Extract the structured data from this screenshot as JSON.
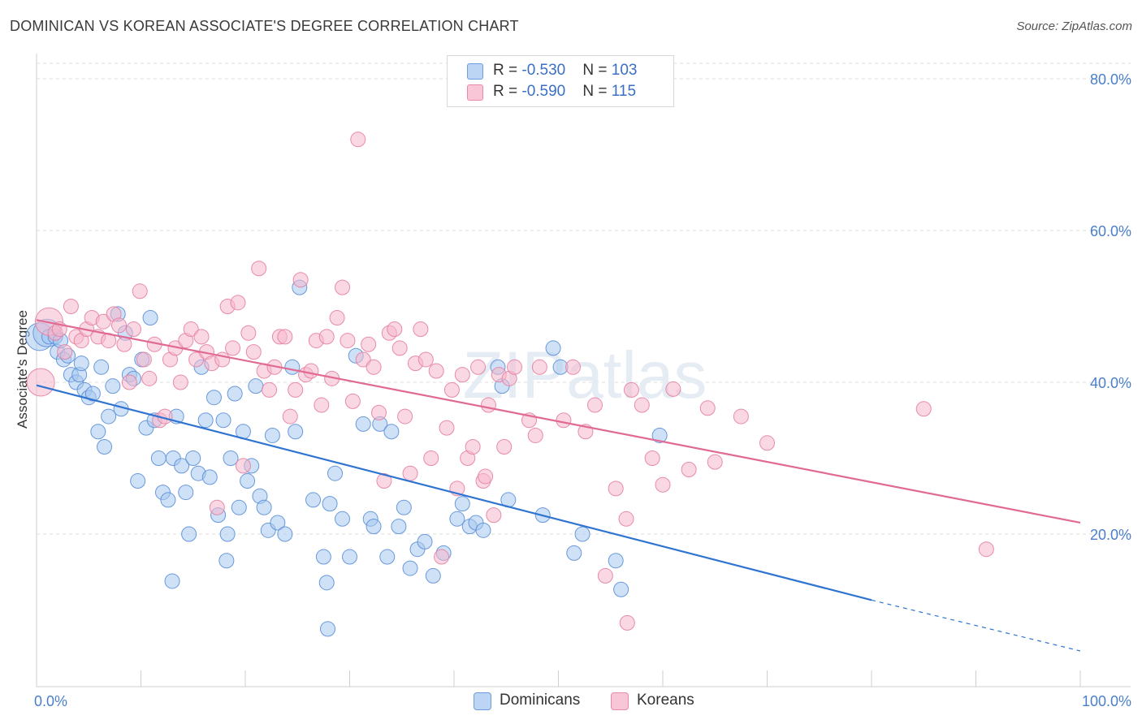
{
  "title": "DOMINICAN VS KOREAN ASSOCIATE'S DEGREE CORRELATION CHART",
  "source": "Source: ZipAtlas.com",
  "watermark": "ZIPatlas",
  "legend_top": {
    "rows": [
      {
        "r_label": "R = ",
        "r_value": "-0.530",
        "n_label": "N = ",
        "n_value": "103"
      },
      {
        "r_label": "R = ",
        "r_value": "-0.590",
        "n_label": "N = ",
        "n_value": "115"
      }
    ]
  },
  "legend_bottom": {
    "series_a": "Dominicans",
    "series_b": "Koreans"
  },
  "colors": {
    "dominican_fill": "#a8c8f0",
    "dominican_stroke": "#5b8fd6",
    "dominican_line": "#2f74d0",
    "korean_fill": "#f6b8cc",
    "korean_stroke": "#e57fa2",
    "korean_line": "#e06a94",
    "tick_text": "#4a7fc9",
    "grid": "#dedede"
  },
  "chart_data": {
    "type": "scatter",
    "title": "DOMINICAN VS KOREAN ASSOCIATE'S DEGREE CORRELATION CHART",
    "xlabel": "",
    "ylabel": "Associate's Degree",
    "xlim": [
      0,
      100
    ],
    "ylim": [
      0,
      82
    ],
    "x_tick_labels": [
      "0.0%",
      "100.0%"
    ],
    "y_ticks": [
      20,
      40,
      60,
      80
    ],
    "y_tick_labels": [
      "20.0%",
      "40.0%",
      "60.0%",
      "80.0%"
    ],
    "grid": true,
    "series": [
      {
        "name": "Dominicans",
        "r": -0.53,
        "n": 103,
        "trend": {
          "x0": 0,
          "y0": 39.6,
          "x1": 80,
          "y1": 11.3,
          "dashed_to_x": 100,
          "dashed_to_y": 4.6
        },
        "points": [
          [
            0.3,
            46
          ],
          [
            1,
            46.5
          ],
          [
            1.2,
            46
          ],
          [
            1.8,
            46
          ],
          [
            2,
            44
          ],
          [
            2.3,
            45.5
          ],
          [
            2.6,
            43
          ],
          [
            3,
            43.5
          ],
          [
            3.3,
            41
          ],
          [
            3.8,
            40
          ],
          [
            4.1,
            41
          ],
          [
            4.3,
            42.5
          ],
          [
            4.6,
            39
          ],
          [
            5,
            38
          ],
          [
            5.4,
            38.5
          ],
          [
            5.9,
            33.5
          ],
          [
            6.2,
            42
          ],
          [
            6.5,
            31.5
          ],
          [
            6.9,
            35.5
          ],
          [
            7.3,
            39.5
          ],
          [
            7.8,
            49
          ],
          [
            8.1,
            36.5
          ],
          [
            8.5,
            46.5
          ],
          [
            8.9,
            41
          ],
          [
            9.3,
            40.5
          ],
          [
            9.7,
            27
          ],
          [
            10.1,
            43
          ],
          [
            10.5,
            34
          ],
          [
            10.9,
            48.5
          ],
          [
            11.3,
            35
          ],
          [
            11.7,
            30
          ],
          [
            12.1,
            25.5
          ],
          [
            12.6,
            24.5
          ],
          [
            13.1,
            30
          ],
          [
            13.4,
            35.5
          ],
          [
            13.9,
            29
          ],
          [
            14.3,
            25.5
          ],
          [
            14.6,
            20
          ],
          [
            15,
            30
          ],
          [
            15.5,
            28
          ],
          [
            15.8,
            42
          ],
          [
            16.2,
            35
          ],
          [
            16.6,
            27.5
          ],
          [
            17,
            38
          ],
          [
            17.4,
            22.5
          ],
          [
            17.9,
            35
          ],
          [
            18.3,
            20
          ],
          [
            18.6,
            30
          ],
          [
            19,
            38.5
          ],
          [
            19.4,
            23.5
          ],
          [
            19.8,
            33.5
          ],
          [
            20.2,
            27
          ],
          [
            20.6,
            29
          ],
          [
            21,
            39.5
          ],
          [
            21.4,
            25
          ],
          [
            21.8,
            23.5
          ],
          [
            22.2,
            20.5
          ],
          [
            22.6,
            33
          ],
          [
            23.1,
            21.5
          ],
          [
            23.8,
            20
          ],
          [
            24.5,
            42
          ],
          [
            24.8,
            33.5
          ],
          [
            25.2,
            52.5
          ],
          [
            26.5,
            24.5
          ],
          [
            27.5,
            17
          ],
          [
            27.9,
            7.5
          ],
          [
            28.1,
            24
          ],
          [
            28.6,
            28
          ],
          [
            29.3,
            22
          ],
          [
            30,
            17
          ],
          [
            30.6,
            43.5
          ],
          [
            31.3,
            34.5
          ],
          [
            32,
            22
          ],
          [
            32.3,
            21
          ],
          [
            32.9,
            34.5
          ],
          [
            33.6,
            17
          ],
          [
            34,
            33.5
          ],
          [
            34.7,
            21
          ],
          [
            35.2,
            23.5
          ],
          [
            35.8,
            15.5
          ],
          [
            36.5,
            18
          ],
          [
            37.2,
            19
          ],
          [
            38,
            14.5
          ],
          [
            39,
            17.5
          ],
          [
            40.3,
            22
          ],
          [
            40.8,
            24
          ],
          [
            41.5,
            21
          ],
          [
            42.1,
            21.5
          ],
          [
            42.8,
            20.5
          ],
          [
            44.2,
            42
          ],
          [
            44.6,
            39.5
          ],
          [
            45.2,
            24.5
          ],
          [
            48.5,
            22.5
          ],
          [
            49.5,
            44.5
          ],
          [
            50.2,
            42
          ],
          [
            51.5,
            17.5
          ],
          [
            52.3,
            20
          ],
          [
            55.5,
            16.5
          ],
          [
            59.7,
            33
          ],
          [
            13,
            13.8
          ],
          [
            18.2,
            16.5
          ],
          [
            56,
            12.7
          ],
          [
            27.8,
            13.6
          ]
        ]
      },
      {
        "name": "Koreans",
        "r": -0.59,
        "n": 115,
        "trend": {
          "x0": 0,
          "y0": 48.2,
          "x1": 100,
          "y1": 21.5
        },
        "points": [
          [
            0.4,
            40
          ],
          [
            1.2,
            48
          ],
          [
            1.8,
            46.5
          ],
          [
            2.2,
            47
          ],
          [
            2.7,
            44
          ],
          [
            3.3,
            50
          ],
          [
            3.8,
            46
          ],
          [
            4.3,
            45.5
          ],
          [
            4.8,
            47
          ],
          [
            5.3,
            48.5
          ],
          [
            5.9,
            46
          ],
          [
            6.4,
            48
          ],
          [
            6.9,
            45.5
          ],
          [
            7.4,
            49
          ],
          [
            7.9,
            47.5
          ],
          [
            8.4,
            45
          ],
          [
            8.9,
            40
          ],
          [
            9.3,
            47
          ],
          [
            9.9,
            52
          ],
          [
            10.3,
            43
          ],
          [
            10.8,
            40.5
          ],
          [
            11.3,
            45
          ],
          [
            11.8,
            35
          ],
          [
            12.3,
            35.5
          ],
          [
            12.8,
            43
          ],
          [
            13.3,
            44.5
          ],
          [
            13.8,
            40
          ],
          [
            14.3,
            45.5
          ],
          [
            14.8,
            47
          ],
          [
            15.3,
            43
          ],
          [
            15.8,
            46
          ],
          [
            16.3,
            44
          ],
          [
            16.8,
            42.5
          ],
          [
            17.3,
            23.5
          ],
          [
            17.8,
            43
          ],
          [
            18.3,
            50
          ],
          [
            18.8,
            44.5
          ],
          [
            19.3,
            50.5
          ],
          [
            19.8,
            29
          ],
          [
            20.3,
            46.5
          ],
          [
            20.8,
            44
          ],
          [
            21.3,
            55
          ],
          [
            21.8,
            41.5
          ],
          [
            22.3,
            39
          ],
          [
            22.8,
            42
          ],
          [
            23.3,
            46
          ],
          [
            23.8,
            46
          ],
          [
            24.3,
            35.5
          ],
          [
            24.8,
            39
          ],
          [
            25.3,
            53.5
          ],
          [
            25.8,
            41
          ],
          [
            26.3,
            41.5
          ],
          [
            26.8,
            45.5
          ],
          [
            27.3,
            37
          ],
          [
            27.8,
            46
          ],
          [
            28.3,
            40.5
          ],
          [
            28.8,
            48.5
          ],
          [
            29.3,
            52.5
          ],
          [
            29.8,
            45.5
          ],
          [
            30.3,
            37.5
          ],
          [
            30.8,
            72
          ],
          [
            31.3,
            43
          ],
          [
            31.8,
            45
          ],
          [
            32.3,
            42
          ],
          [
            32.8,
            36
          ],
          [
            33.3,
            27
          ],
          [
            33.8,
            46.5
          ],
          [
            34.3,
            47
          ],
          [
            34.8,
            44.5
          ],
          [
            35.3,
            35.5
          ],
          [
            35.8,
            28
          ],
          [
            36.3,
            42.5
          ],
          [
            36.8,
            47
          ],
          [
            37.3,
            43
          ],
          [
            37.8,
            30
          ],
          [
            38.3,
            41.5
          ],
          [
            38.8,
            17
          ],
          [
            39.3,
            34
          ],
          [
            39.8,
            39
          ],
          [
            40.3,
            26
          ],
          [
            40.8,
            41
          ],
          [
            41.3,
            30
          ],
          [
            41.8,
            31.5
          ],
          [
            42.3,
            42
          ],
          [
            42.8,
            27
          ],
          [
            43.3,
            37
          ],
          [
            43.8,
            22.5
          ],
          [
            44.3,
            41
          ],
          [
            44.8,
            31.5
          ],
          [
            45.3,
            40.5
          ],
          [
            45.8,
            42
          ],
          [
            47.2,
            35
          ],
          [
            47.8,
            33
          ],
          [
            48.2,
            42
          ],
          [
            50.5,
            35
          ],
          [
            51.4,
            42
          ],
          [
            52.6,
            33.5
          ],
          [
            53.5,
            37
          ],
          [
            54.5,
            14.5
          ],
          [
            55.5,
            26
          ],
          [
            56.5,
            22
          ],
          [
            57,
            39
          ],
          [
            58,
            37
          ],
          [
            59,
            30
          ],
          [
            60,
            26.5
          ],
          [
            62.5,
            28.5
          ],
          [
            65,
            29.5
          ],
          [
            67.5,
            35.5
          ],
          [
            70,
            32
          ],
          [
            85,
            36.5
          ],
          [
            91,
            18
          ],
          [
            56.6,
            8.3
          ],
          [
            61,
            39.1
          ],
          [
            64.3,
            36.6
          ],
          [
            43,
            27.6
          ]
        ]
      }
    ]
  }
}
